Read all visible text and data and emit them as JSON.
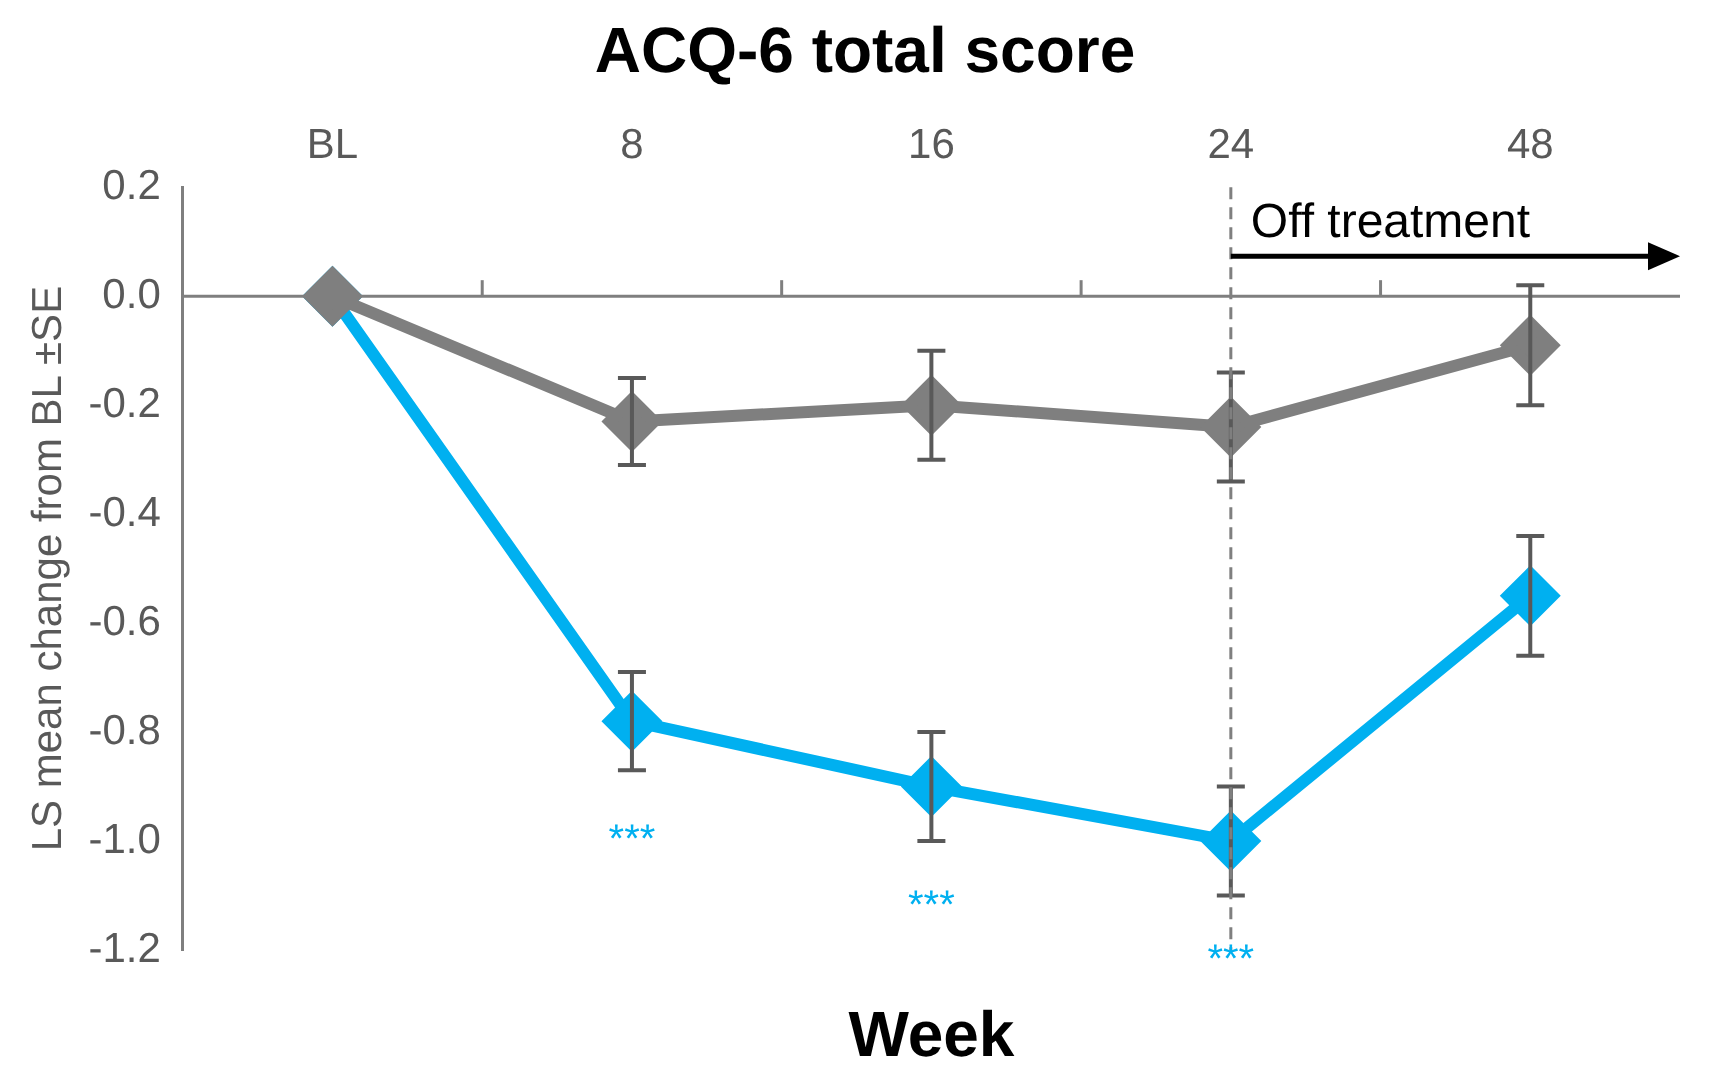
{
  "chart_data": {
    "type": "line",
    "title": "ACQ-6 total score",
    "xlabel": "Week",
    "ylabel": "LS mean change from BL ±SE",
    "categories": [
      "BL",
      "8",
      "16",
      "24",
      "48"
    ],
    "series": [
      {
        "color": "#7f7f7f",
        "values": [
          0,
          -0.23,
          -0.2,
          -0.24,
          -0.09
        ],
        "errors": [
          null,
          [
            -0.31,
            -0.15
          ],
          [
            -0.3,
            -0.1
          ],
          [
            -0.34,
            -0.14
          ],
          [
            -0.2,
            0.02
          ]
        ]
      },
      {
        "color": "#00b0f0",
        "values": [
          0,
          -0.78,
          -0.9,
          -1.0,
          -0.55
        ],
        "errors": [
          null,
          [
            -0.87,
            -0.69
          ],
          [
            -1.0,
            -0.8
          ],
          [
            -1.1,
            -0.9
          ],
          [
            -0.66,
            -0.44
          ]
        ]
      }
    ],
    "ylim": [
      -1.2,
      0.2
    ],
    "yticks": [
      {
        "value": -1.2,
        "label": "-1.2"
      },
      {
        "value": -1,
        "label": "-1.0"
      },
      {
        "value": -0.8,
        "label": "-0.8"
      },
      {
        "value": -0.6,
        "label": "-0.6"
      },
      {
        "value": -0.4,
        "label": "-0.4"
      },
      {
        "value": -0.2,
        "label": "-0.2"
      },
      {
        "value": 0,
        "label": "0.0"
      },
      {
        "value": 0.2,
        "label": "0.2"
      }
    ],
    "grid": false,
    "legend": false,
    "marker": "diamond",
    "line_style": "solid",
    "ref_lines": [
      {
        "axis": "x",
        "value": "24",
        "label": "Off treatment",
        "color": "#7f7f7f",
        "line_style": "dashed"
      }
    ],
    "annotations": [
      "***",
      "***",
      "***"
    ]
  }
}
